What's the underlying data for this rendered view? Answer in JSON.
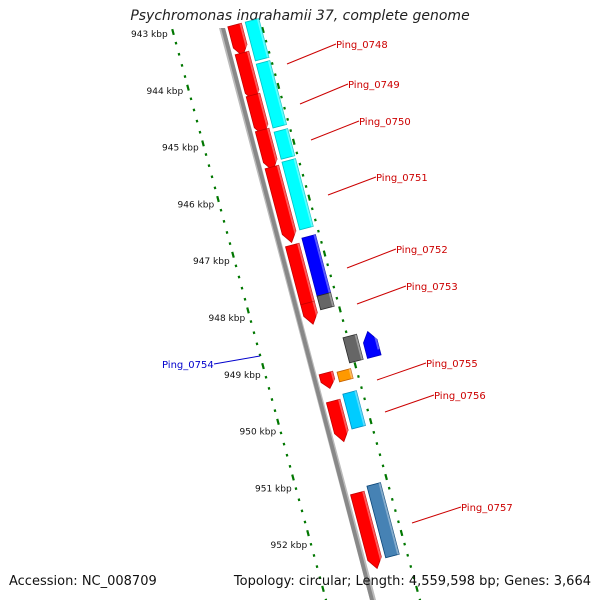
{
  "title": "Psychromonas ingrahamii 37, complete genome",
  "accession": "Accession: NC_008709",
  "summary": "Topology: circular; Length: 4,559,598 bp; Genes: 3,664",
  "kbp_labels": [
    "943 kbp",
    "944 kbp",
    "945 kbp",
    "946 kbp",
    "947 kbp",
    "948 kbp",
    "949 kbp",
    "950 kbp",
    "951 kbp",
    "952 kbp"
  ],
  "colors": {
    "cds": "#ff0000",
    "cyan": "#00ffff",
    "blue": "#0000ff",
    "gray": "#666666",
    "orange": "#ff9900",
    "steel": "#4682b4",
    "light_blue": "#00ccff",
    "forward_label": "#cc0000",
    "reverse_label": "#0000cc",
    "tick": "#007700",
    "backbone": "#888888"
  },
  "genes": [
    {
      "name": "Ping_0748",
      "strand": "forward"
    },
    {
      "name": "Ping_0749",
      "strand": "forward"
    },
    {
      "name": "Ping_0750",
      "strand": "forward"
    },
    {
      "name": "Ping_0751",
      "strand": "forward"
    },
    {
      "name": "Ping_0752",
      "strand": "forward"
    },
    {
      "name": "Ping_0753",
      "strand": "forward"
    },
    {
      "name": "Ping_0754",
      "strand": "reverse"
    },
    {
      "name": "Ping_0755",
      "strand": "forward"
    },
    {
      "name": "Ping_0756",
      "strand": "forward"
    },
    {
      "name": "Ping_0757",
      "strand": "forward"
    }
  ]
}
